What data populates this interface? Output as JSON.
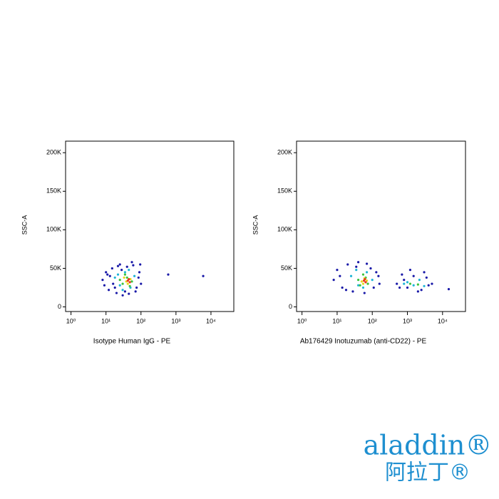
{
  "chart_data": [
    {
      "type": "scatter",
      "xlabel": "Isotype Human IgG - PE",
      "ylabel": "SSC-A",
      "xscale": "log",
      "xlim": [
        0.7,
        45000
      ],
      "ylim": [
        -6000,
        215000
      ],
      "xticks": [
        {
          "value": 1,
          "label": "10⁰"
        },
        {
          "value": 10,
          "label": "10¹"
        },
        {
          "value": 100,
          "label": "10²"
        },
        {
          "value": 1000,
          "label": "10³"
        },
        {
          "value": 10000,
          "label": "10⁴"
        }
      ],
      "yticks": [
        0,
        {
          "value": 50000,
          "label": "50K"
        },
        {
          "value": 100000,
          "label": "100K"
        },
        {
          "value": 150000,
          "label": "150K"
        },
        {
          "value": 200000,
          "label": "200K"
        }
      ],
      "series": [
        {
          "color": "#1a1aa8",
          "x": [
            8,
            10,
            12,
            15,
            20,
            25,
            30,
            40,
            55,
            70,
            90,
            100,
            9,
            13,
            18,
            28,
            35,
            60,
            85,
            11,
            16,
            22,
            45,
            75,
            95,
            600,
            6000
          ],
          "values": [
            35000,
            45000,
            22000,
            50000,
            18000,
            55000,
            15000,
            52000,
            58000,
            20000,
            45000,
            30000,
            28000,
            40000,
            25000,
            48000,
            20000,
            54000,
            38000,
            42000,
            30000,
            53000,
            17000,
            25000,
            55000,
            42000,
            40000
          ]
        },
        {
          "color": "#1fb5d6",
          "x": [
            18,
            25,
            35,
            50,
            65,
            30,
            45,
            22
          ],
          "values": [
            38000,
            28000,
            45000,
            25000,
            40000,
            22000,
            48000,
            42000
          ]
        },
        {
          "color": "#3cc43c",
          "x": [
            30,
            40,
            55,
            35,
            48,
            25
          ],
          "values": [
            30000,
            38000,
            33000,
            42000,
            27000,
            35000
          ]
        },
        {
          "color": "#e8d81e",
          "x": [
            38,
            50,
            42,
            33
          ],
          "values": [
            33000,
            36000,
            30000,
            38000
          ]
        },
        {
          "color": "#e8361e",
          "x": [
            42,
            48,
            45
          ],
          "values": [
            34000,
            32000,
            36000
          ]
        }
      ]
    },
    {
      "type": "scatter",
      "xlabel": "Ab176429 Inotuzumab (anti-CD22) - PE",
      "ylabel": "SSC-A",
      "xscale": "log",
      "xlim": [
        0.7,
        45000
      ],
      "ylim": [
        -6000,
        215000
      ],
      "xticks": [
        {
          "value": 1,
          "label": "10⁰"
        },
        {
          "value": 10,
          "label": "10¹"
        },
        {
          "value": 100,
          "label": "10²"
        },
        {
          "value": 1000,
          "label": "10³"
        },
        {
          "value": 10000,
          "label": "10⁴"
        }
      ],
      "yticks": [
        0,
        {
          "value": 50000,
          "label": "50K"
        },
        {
          "value": 100000,
          "label": "100K"
        },
        {
          "value": 150000,
          "label": "150K"
        },
        {
          "value": 200000,
          "label": "200K"
        }
      ],
      "series": [
        {
          "color": "#1a1aa8",
          "x": [
            8,
            10,
            14,
            20,
            28,
            40,
            60,
            90,
            130,
            160,
            12,
            18,
            35,
            70,
            110,
            150,
            500,
            700,
            1000,
            1500,
            2000,
            3000,
            4000,
            800,
            1200,
            2500,
            3500,
            600,
            5000,
            15000
          ],
          "values": [
            35000,
            48000,
            25000,
            55000,
            20000,
            58000,
            18000,
            50000,
            45000,
            30000,
            40000,
            22000,
            52000,
            56000,
            25000,
            40000,
            30000,
            42000,
            25000,
            40000,
            20000,
            45000,
            28000,
            35000,
            48000,
            22000,
            38000,
            25000,
            30000,
            23000
          ]
        },
        {
          "color": "#1fb5d6",
          "x": [
            25,
            40,
            70,
            100,
            35,
            55,
            1000,
            1500,
            2200,
            800,
            3000
          ],
          "values": [
            40000,
            28000,
            45000,
            35000,
            48000,
            25000,
            32000,
            28000,
            35000,
            30000,
            27000
          ]
        },
        {
          "color": "#3cc43c",
          "x": [
            40,
            55,
            75,
            45,
            65,
            1200,
            2000
          ],
          "values": [
            35000,
            42000,
            30000,
            28000,
            38000,
            30000,
            29000
          ]
        },
        {
          "color": "#e8d81e",
          "x": [
            50,
            60,
            70,
            55
          ],
          "values": [
            33000,
            37000,
            34000,
            30000
          ]
        },
        {
          "color": "#e8361e",
          "x": [
            58,
            65,
            62
          ],
          "values": [
            34000,
            32000,
            36000
          ]
        }
      ]
    }
  ],
  "logo": {
    "latin": "aladdin®",
    "chinese": "阿拉丁®"
  }
}
